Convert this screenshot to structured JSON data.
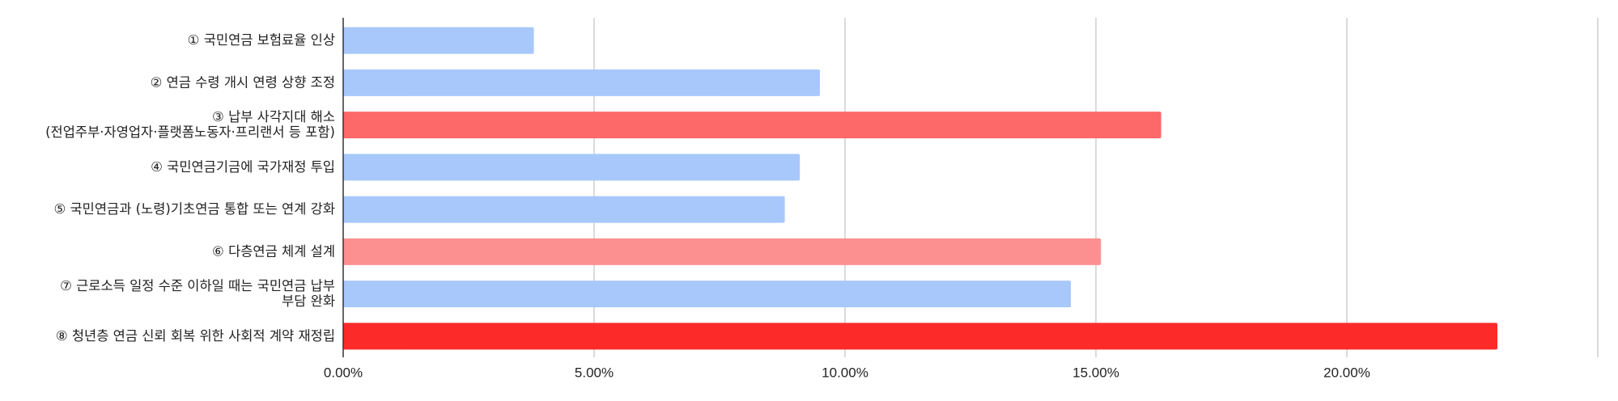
{
  "chart_data": {
    "type": "bar",
    "orientation": "horizontal",
    "categories": [
      [
        "① 국민연금 보험료율 인상"
      ],
      [
        "② 연금 수령 개시 연령 상향 조정"
      ],
      [
        "③ 납부 사각지대 해소",
        "(전업주부·자영업자·플랫폼노동자·프리랜서 등 포함)"
      ],
      [
        "④ 국민연금기금에 국가재정 투입"
      ],
      [
        "⑤ 국민연금과 (노령)기초연금 통합 또는 연계 강화"
      ],
      [
        "⑥ 다층연금 체계 설계"
      ],
      [
        "⑦ 근로소득 일정 수준 이하일 때는 국민연금 납부",
        "부담 완화"
      ],
      [
        "⑧ 청년층 연금 신뢰 회복 위한 사회적 계약 재정립"
      ]
    ],
    "values": [
      3.8,
      9.5,
      16.3,
      9.1,
      8.8,
      15.1,
      14.5,
      23.0
    ],
    "bar_colors": [
      "#a8c8fb",
      "#a8c8fb",
      "#fd6868",
      "#a8c8fb",
      "#a8c8fb",
      "#fc9090",
      "#a8c8fb",
      "#fd2a2a"
    ],
    "x_ticks": [
      "0.00%",
      "5.00%",
      "10.00%",
      "15.00%",
      "20.00%"
    ],
    "x_tick_values": [
      0,
      5,
      10,
      15,
      20
    ],
    "xlim": [
      0,
      25
    ],
    "grid": true,
    "title": "",
    "xlabel": "",
    "ylabel": ""
  }
}
